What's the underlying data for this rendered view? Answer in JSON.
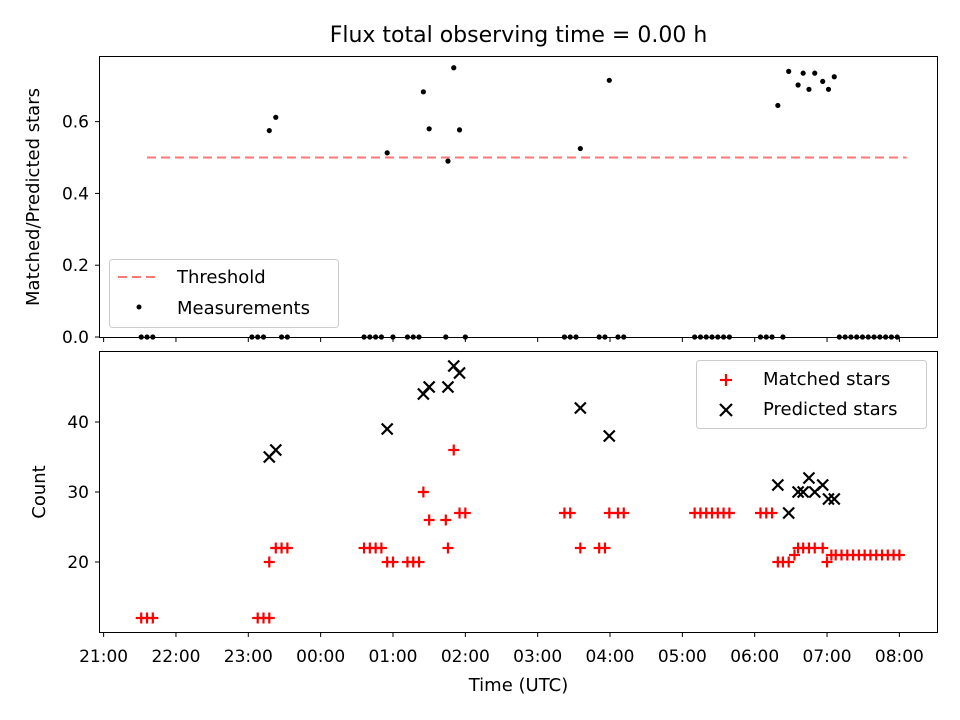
{
  "title": "Flux total observing time = 0.00 h",
  "chart_data": [
    {
      "type": "scatter",
      "ylabel": "Matched/Predicted stars",
      "ylim": [
        0,
        0.78
      ],
      "yticks": [
        0.0,
        0.2,
        0.4,
        0.6
      ],
      "ytick_labels": [
        "0.0",
        "0.2",
        "0.4",
        "0.6"
      ],
      "threshold": {
        "name": "Threshold",
        "value": 0.5,
        "x_start": 21.6,
        "x_end": 32.1,
        "color": "#ff7777",
        "style": "dashed"
      },
      "legend": {
        "placement": "lower-left",
        "entries": [
          "Threshold",
          "Measurements"
        ]
      },
      "series": [
        {
          "name": "Measurements",
          "color": "#000000",
          "marker": "dot",
          "points": [
            [
              21.52,
              0
            ],
            [
              21.6,
              0
            ],
            [
              21.68,
              0
            ],
            [
              23.05,
              0
            ],
            [
              23.13,
              0
            ],
            [
              23.21,
              0
            ],
            [
              23.29,
              0.575
            ],
            [
              23.38,
              0.612
            ],
            [
              23.46,
              0
            ],
            [
              23.54,
              0
            ],
            [
              24.6,
              0
            ],
            [
              24.68,
              0
            ],
            [
              24.76,
              0
            ],
            [
              24.84,
              0
            ],
            [
              24.92,
              0.513
            ],
            [
              25.0,
              0
            ],
            [
              25.2,
              0
            ],
            [
              25.28,
              0
            ],
            [
              25.36,
              0
            ],
            [
              25.42,
              0.683
            ],
            [
              25.5,
              0.58
            ],
            [
              25.73,
              0
            ],
            [
              25.76,
              0.49
            ],
            [
              25.84,
              0.75
            ],
            [
              25.92,
              0.577
            ],
            [
              26.0,
              0
            ],
            [
              27.37,
              0
            ],
            [
              27.45,
              0
            ],
            [
              27.53,
              0
            ],
            [
              27.59,
              0.525
            ],
            [
              27.85,
              0
            ],
            [
              27.93,
              0
            ],
            [
              27.99,
              0.715
            ],
            [
              28.11,
              0
            ],
            [
              28.19,
              0
            ],
            [
              29.17,
              0
            ],
            [
              29.25,
              0
            ],
            [
              29.33,
              0
            ],
            [
              29.41,
              0
            ],
            [
              29.49,
              0
            ],
            [
              29.57,
              0
            ],
            [
              29.65,
              0
            ],
            [
              30.08,
              0
            ],
            [
              30.16,
              0
            ],
            [
              30.24,
              0
            ],
            [
              30.32,
              0.645
            ],
            [
              30.39,
              0
            ],
            [
              30.47,
              0.74
            ],
            [
              30.6,
              0.702
            ],
            [
              30.67,
              0.735
            ],
            [
              30.75,
              0.69
            ],
            [
              30.83,
              0.735
            ],
            [
              30.94,
              0.712
            ],
            [
              31.02,
              0.69
            ],
            [
              31.1,
              0.725
            ],
            [
              31.17,
              0
            ],
            [
              31.25,
              0
            ],
            [
              31.33,
              0
            ],
            [
              31.41,
              0
            ],
            [
              31.49,
              0
            ],
            [
              31.57,
              0
            ],
            [
              31.65,
              0
            ],
            [
              31.73,
              0
            ],
            [
              31.81,
              0
            ],
            [
              31.89,
              0
            ],
            [
              31.97,
              0
            ]
          ]
        }
      ]
    },
    {
      "type": "scatter",
      "xlabel": "Time (UTC)",
      "ylabel": "Count",
      "ylim": [
        10,
        50
      ],
      "yticks": [
        20,
        30,
        40
      ],
      "ytick_labels": [
        "20",
        "30",
        "40"
      ],
      "xlim": [
        20.95,
        32.52
      ],
      "xticks": [
        21,
        22,
        23,
        24,
        25,
        26,
        27,
        28,
        29,
        30,
        31,
        32
      ],
      "xtick_labels": [
        "21:00",
        "22:00",
        "23:00",
        "00:00",
        "01:00",
        "02:00",
        "03:00",
        "04:00",
        "05:00",
        "06:00",
        "07:00",
        "08:00"
      ],
      "legend": {
        "placement": "upper-right",
        "entries": [
          "Matched stars",
          "Predicted stars"
        ]
      },
      "series": [
        {
          "name": "Matched stars",
          "color": "#ff0000",
          "marker": "plus",
          "points": [
            [
              21.52,
              12
            ],
            [
              21.6,
              12
            ],
            [
              21.68,
              12
            ],
            [
              23.13,
              12
            ],
            [
              23.21,
              12
            ],
            [
              23.29,
              12
            ],
            [
              23.29,
              20
            ],
            [
              23.38,
              22
            ],
            [
              23.46,
              22
            ],
            [
              23.54,
              22
            ],
            [
              24.6,
              22
            ],
            [
              24.68,
              22
            ],
            [
              24.76,
              22
            ],
            [
              24.84,
              22
            ],
            [
              24.92,
              20
            ],
            [
              25.0,
              20
            ],
            [
              25.2,
              20
            ],
            [
              25.28,
              20
            ],
            [
              25.36,
              20
            ],
            [
              25.42,
              30
            ],
            [
              25.5,
              26
            ],
            [
              25.73,
              26
            ],
            [
              25.76,
              22
            ],
            [
              25.84,
              36
            ],
            [
              25.92,
              27
            ],
            [
              26.0,
              27
            ],
            [
              27.37,
              27
            ],
            [
              27.45,
              27
            ],
            [
              27.59,
              22
            ],
            [
              27.85,
              22
            ],
            [
              27.93,
              22
            ],
            [
              27.99,
              27
            ],
            [
              28.11,
              27
            ],
            [
              28.19,
              27
            ],
            [
              29.17,
              27
            ],
            [
              29.25,
              27
            ],
            [
              29.33,
              27
            ],
            [
              29.41,
              27
            ],
            [
              29.49,
              27
            ],
            [
              29.57,
              27
            ],
            [
              29.65,
              27
            ],
            [
              30.08,
              27
            ],
            [
              30.16,
              27
            ],
            [
              30.24,
              27
            ],
            [
              30.32,
              20
            ],
            [
              30.39,
              20
            ],
            [
              30.47,
              20
            ],
            [
              30.55,
              21
            ],
            [
              30.6,
              22
            ],
            [
              30.67,
              22
            ],
            [
              30.75,
              22
            ],
            [
              30.83,
              22
            ],
            [
              30.94,
              22
            ],
            [
              31.0,
              20
            ],
            [
              31.06,
              21
            ],
            [
              31.12,
              21
            ],
            [
              31.2,
              21
            ],
            [
              31.28,
              21
            ],
            [
              31.36,
              21
            ],
            [
              31.44,
              21
            ],
            [
              31.52,
              21
            ],
            [
              31.6,
              21
            ],
            [
              31.68,
              21
            ],
            [
              31.76,
              21
            ],
            [
              31.84,
              21
            ],
            [
              31.92,
              21
            ],
            [
              32.0,
              21
            ]
          ]
        },
        {
          "name": "Predicted stars",
          "color": "#000000",
          "marker": "x",
          "points": [
            [
              23.29,
              35
            ],
            [
              23.38,
              36
            ],
            [
              24.92,
              39
            ],
            [
              25.42,
              44
            ],
            [
              25.5,
              45
            ],
            [
              25.76,
              45
            ],
            [
              25.84,
              48
            ],
            [
              25.92,
              47
            ],
            [
              27.59,
              42
            ],
            [
              27.99,
              38
            ],
            [
              30.32,
              31
            ],
            [
              30.47,
              27
            ],
            [
              30.6,
              30
            ],
            [
              30.67,
              30
            ],
            [
              30.75,
              32
            ],
            [
              30.83,
              30
            ],
            [
              30.94,
              31
            ],
            [
              31.02,
              29
            ],
            [
              31.1,
              29
            ]
          ]
        }
      ]
    }
  ]
}
